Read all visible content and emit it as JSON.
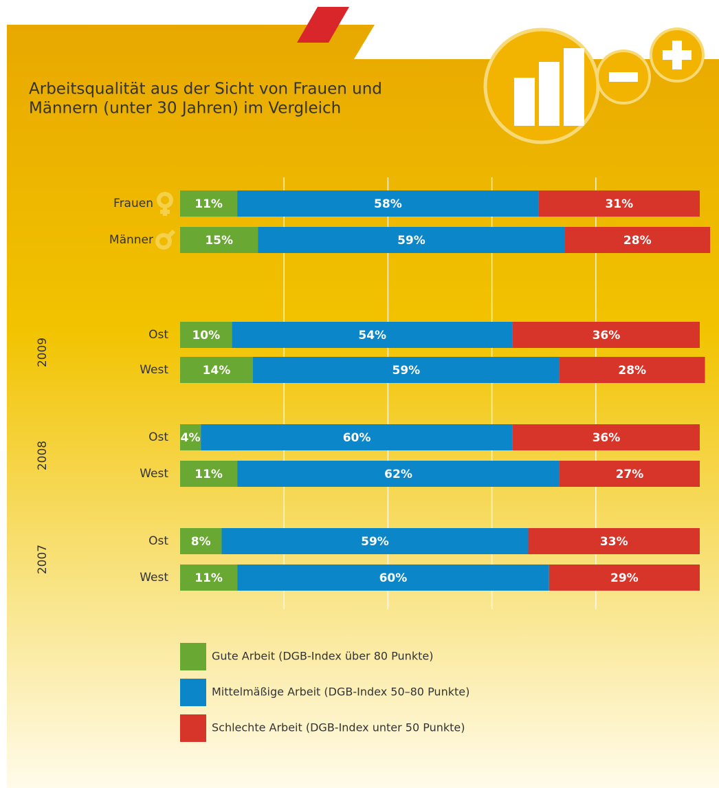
{
  "chart_data": {
    "type": "stacked-bar-horizontal",
    "title": [
      "Arbeitsqualität aus der Sicht von Frauen und",
      "Männern (unter 30 Jahren) im Vergleich"
    ],
    "categories": [
      "Frauen",
      "Männer",
      "Ost",
      "West",
      "Ost",
      "West",
      "Ost",
      "West"
    ],
    "groups": [
      {
        "label": "2009",
        "rows": [
          2,
          3
        ]
      },
      {
        "label": "2008",
        "rows": [
          4,
          5
        ]
      },
      {
        "label": "2007",
        "rows": [
          6,
          7
        ]
      }
    ],
    "series": [
      {
        "name": "Gute Arbeit (DGB-Index über 80 Punkte)",
        "color": "#6aa834",
        "values": [
          11,
          15,
          10,
          14,
          4,
          11,
          8,
          11
        ],
        "value_labels": [
          "11%",
          "15%",
          "10%",
          "14%",
          "4%",
          "11%",
          "8%",
          "11%"
        ]
      },
      {
        "name": "Mittelmäßige Arbeit (DGB-Index 50–80 Punkte)",
        "color": "#0a86c9",
        "values": [
          58,
          59,
          54,
          59,
          60,
          62,
          59,
          60
        ],
        "value_labels": [
          "58%",
          "59%",
          "54%",
          "59%",
          "60%",
          "62%",
          "59%",
          "60%"
        ]
      },
      {
        "name": "Schlechte Arbeit (DGB-Index unter 50 Punkte)",
        "color": "#d8352a",
        "values": [
          31,
          28,
          36,
          28,
          36,
          27,
          33,
          29
        ],
        "value_labels": [
          "31%",
          "28%",
          "36%",
          "28%",
          "36%",
          "27%",
          "33%",
          "29%"
        ]
      }
    ],
    "xlim": [
      0,
      100
    ],
    "xticks": [
      20,
      40,
      60,
      80
    ],
    "grid": true
  }
}
